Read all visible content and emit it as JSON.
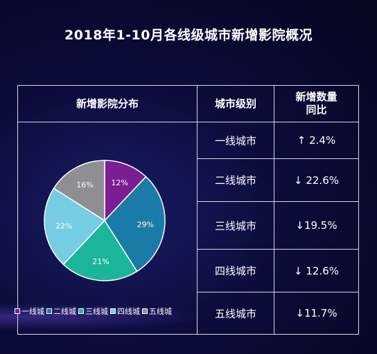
{
  "title": "2018年1-10月各线级城市新增影院概况",
  "table": {
    "headers": {
      "distribution": "新增影院分布",
      "city_level": "城市级别",
      "growth_line1": "新增数量",
      "growth_line2": "同比"
    },
    "rows": [
      {
        "level": "一线城市",
        "change": "↑ 2.4%"
      },
      {
        "level": "二线城市",
        "change": "↓ 22.6%"
      },
      {
        "level": "三线城市",
        "change": "↓19.5%"
      },
      {
        "level": "四线城市",
        "change": "↓ 12.6%"
      },
      {
        "level": "五线城市",
        "change": "↓11.7%"
      }
    ]
  },
  "chart_data": {
    "type": "pie",
    "categories": [
      "一线城",
      "二线城",
      "三线城",
      "四线城",
      "五线城"
    ],
    "values": [
      12,
      29,
      21,
      22,
      16
    ],
    "labels": [
      "12%",
      "29%",
      "21%",
      "22%",
      "16%"
    ],
    "colors": [
      "#7b1d93",
      "#1a7ba6",
      "#1bb59b",
      "#76cde3",
      "#8e8e93"
    ],
    "legend_position": "bottom"
  }
}
